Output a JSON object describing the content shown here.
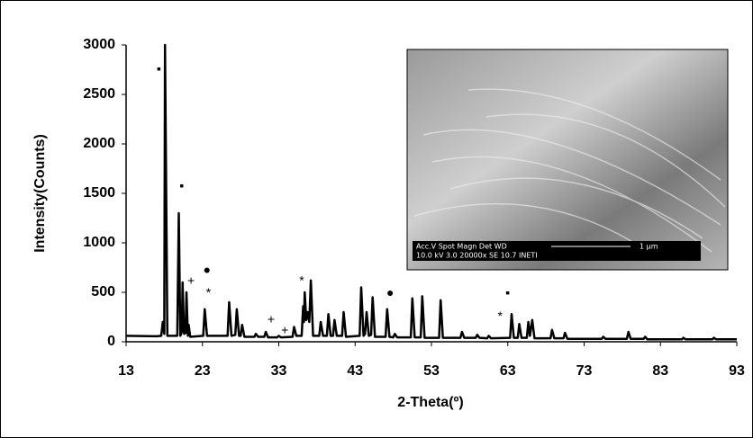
{
  "chart_data": {
    "type": "line",
    "x_label": "2-Theta(º)",
    "y_label": "Intensity(Counts)",
    "xlim": [
      13,
      93
    ],
    "xticks": [
      13,
      23,
      33,
      43,
      53,
      63,
      73,
      83,
      93
    ],
    "ylim": [
      0,
      3000
    ],
    "yticks": [
      0,
      500,
      1000,
      1500,
      2000,
      2500,
      3000
    ],
    "x": [
      13,
      17,
      17.6,
      17.8,
      18.0,
      18.1,
      18.4,
      19.7,
      19.9,
      20.1,
      20.3,
      20.4,
      20.6,
      20.8,
      20.9,
      21.1,
      21.2,
      21.4,
      23.1,
      23.3,
      23.6,
      26.3,
      26.5,
      26.8,
      27.3,
      27.5,
      27.8,
      28.0,
      28.2,
      28.5,
      29.8,
      30,
      30.3,
      31.1,
      31.3,
      31.6,
      32.8,
      33,
      33.3,
      34.8,
      35,
      35.3,
      36.0,
      36.2,
      36.3,
      36.4,
      36.6,
      36.8,
      37.0,
      37.2,
      37.5,
      38.3,
      38.5,
      38.8,
      39.3,
      39.5,
      39.8,
      40.1,
      40.3,
      40.6,
      41.3,
      41.5,
      41.8,
      43.6,
      43.8,
      44.1,
      44.3,
      44.5,
      44.8,
      45.1,
      45.3,
      45.6,
      47.0,
      47.2,
      47.5,
      48.0,
      48.2,
      48.5,
      50.3,
      50.5,
      50.8,
      51.6,
      51.8,
      52.1,
      54.0,
      54.2,
      54.5,
      56.8,
      57,
      57.3,
      58.8,
      59,
      59.3,
      60.3,
      60.5,
      60.8,
      63.3,
      63.5,
      63.8,
      64.3,
      64.5,
      64.8,
      65.5,
      65.7,
      65.9,
      66.2,
      66.5,
      68.6,
      68.8,
      69.1,
      70.3,
      70.5,
      70.8,
      75.3,
      75.5,
      75.8,
      78.6,
      78.8,
      79.1,
      80.8,
      81,
      81.3,
      85.8,
      86,
      86.3,
      89.8,
      90,
      90.3,
      93
    ],
    "series": [
      {
        "color": "#000000",
        "values": [
          60,
          55,
          60,
          200,
          80,
          3000,
          60,
          60,
          1300,
          60,
          100,
          600,
          80,
          90,
          500,
          60,
          170,
          50,
          60,
          330,
          60,
          60,
          400,
          60,
          70,
          330,
          60,
          60,
          170,
          50,
          50,
          80,
          50,
          50,
          100,
          45,
          45,
          60,
          45,
          50,
          150,
          60,
          60,
          360,
          200,
          500,
          220,
          300,
          200,
          620,
          60,
          60,
          200,
          60,
          60,
          280,
          60,
          60,
          220,
          60,
          60,
          300,
          50,
          60,
          550,
          60,
          80,
          300,
          60,
          70,
          450,
          50,
          50,
          330,
          50,
          45,
          80,
          45,
          45,
          440,
          45,
          45,
          460,
          40,
          40,
          420,
          40,
          40,
          100,
          40,
          40,
          70,
          40,
          35,
          60,
          35,
          40,
          280,
          40,
          40,
          180,
          40,
          40,
          200,
          60,
          220,
          35,
          35,
          120,
          35,
          35,
          90,
          30,
          30,
          50,
          30,
          30,
          100,
          30,
          30,
          50,
          25,
          25,
          40,
          25,
          25,
          40,
          25,
          25
        ]
      }
    ],
    "annotations": [
      {
        "text": "▪",
        "x": 17.3,
        "y": 2750
      },
      {
        "text": "▪",
        "x": 20.3,
        "y": 1570
      },
      {
        "text": "●",
        "x": 23.6,
        "y": 720
      },
      {
        "text": "*",
        "x": 23.8,
        "y": 490
      },
      {
        "text": "+",
        "x": 21.5,
        "y": 610
      },
      {
        "text": "+",
        "x": 32.0,
        "y": 220
      },
      {
        "text": "+",
        "x": 33.8,
        "y": 110
      },
      {
        "text": "*",
        "x": 36.0,
        "y": 610
      },
      {
        "text": "●",
        "x": 47.6,
        "y": 490
      },
      {
        "text": "*",
        "x": 62.0,
        "y": 250
      },
      {
        "text": "▪",
        "x": 63.0,
        "y": 490
      }
    ]
  },
  "inset": {
    "labels_top": "Acc.V   Spot Magn     Det   WD",
    "scale": "1 µm",
    "labels_bottom": "10.0 kV 3.0   20000x   SE    10.7  INETI"
  }
}
